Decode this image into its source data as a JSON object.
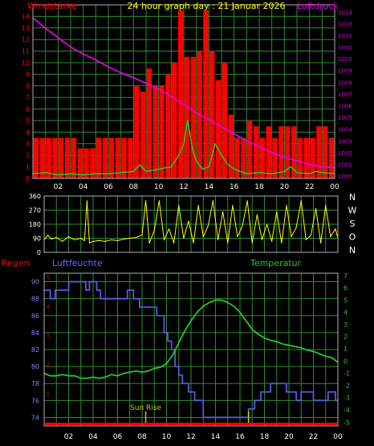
{
  "header": {
    "title": "24 hour graph day : 21 Januar 2026",
    "left_label": "Windstärke",
    "right_label": "Luftdruck"
  },
  "colors": {
    "grid": "#2e8b2e",
    "frame": "#b0b0b0",
    "wind": "#ff0000",
    "gust": "#22cc22",
    "pressure": "#e000e0",
    "direction": "#ffff00",
    "humidity": "#5a5adf",
    "temperature": "#22cc22",
    "rain": "#ff0000",
    "sunrise": "#cccc00"
  },
  "direction_letters": [
    "N",
    "W",
    "S",
    "O",
    "N"
  ],
  "bottom_header": {
    "rain_label": "Regen",
    "humidity_label": "Luftfeuchte",
    "temperature_label": "Temperatur"
  },
  "sun_rise_label": "Sun Rise",
  "x_ticks": [
    "02",
    "04",
    "06",
    "08",
    "10",
    "12",
    "14",
    "16",
    "18",
    "20",
    "22",
    "00"
  ],
  "chart_data": [
    {
      "type": "bar",
      "panel": "wind",
      "title": "24 hour graph day : 21 Januar 2026",
      "ylabel": "Windstärke",
      "y2label": "Luftdruck",
      "x_unit": "hour",
      "ylim": [
        0,
        15
      ],
      "yticks": [
        0,
        1,
        2,
        3,
        4,
        5,
        6,
        7,
        8,
        9,
        10,
        11,
        12,
        13,
        14
      ],
      "y2lim": [
        999.8,
        1014.6
      ],
      "y2ticks": [
        1000,
        1001,
        1002,
        1003,
        1004,
        1005,
        1006,
        1007,
        1008,
        1009,
        1010,
        1011,
        1012,
        1013,
        1014
      ],
      "series": [
        {
          "name": "Windstärke",
          "kind": "bar",
          "x": [
            0.25,
            0.75,
            1.25,
            1.75,
            2.25,
            2.75,
            3.25,
            3.75,
            4.25,
            4.75,
            5.25,
            5.75,
            6.25,
            6.75,
            7.25,
            7.75,
            8.25,
            8.75,
            9.25,
            9.75,
            10.25,
            10.75,
            11.25,
            11.75,
            12.25,
            12.75,
            13.25,
            13.75,
            14.25,
            14.75,
            15.25,
            15.75,
            16.25,
            16.75,
            17.25,
            17.75,
            18.25,
            18.75,
            19.25,
            19.75,
            20.25,
            20.75,
            21.25,
            21.75,
            22.25,
            22.75,
            23.25,
            23.75
          ],
          "values": [
            3.5,
            3.5,
            3.5,
            3.5,
            3.5,
            3.5,
            3.5,
            2.6,
            2.6,
            2.6,
            3.5,
            3.5,
            3.5,
            3.5,
            3.5,
            3.5,
            8.0,
            7.5,
            9.5,
            8.0,
            8.0,
            9.0,
            10.0,
            14.5,
            10.5,
            10.5,
            11.0,
            14.5,
            11.0,
            8.5,
            10.0,
            5.5,
            3.5,
            3.5,
            5.0,
            4.5,
            3.5,
            4.5,
            3.5,
            4.5,
            4.5,
            4.5,
            3.5,
            3.5,
            3.5,
            4.5,
            4.5,
            3.5
          ]
        },
        {
          "name": "Windstärke (Mittel)",
          "kind": "line",
          "x": [
            0,
            1,
            2,
            3,
            4,
            5,
            6,
            7,
            8,
            8.5,
            9,
            10,
            11,
            11.5,
            12,
            12.3,
            12.7,
            13,
            13.5,
            14,
            14.5,
            15,
            15.5,
            16,
            16.5,
            17,
            18,
            19,
            20,
            20.5,
            21,
            22,
            22.5,
            23,
            24
          ],
          "values": [
            0.4,
            0.5,
            0.3,
            0.4,
            0.3,
            0.4,
            0.4,
            0.5,
            0.6,
            1.2,
            0.6,
            0.8,
            1.0,
            1.8,
            3.0,
            5.0,
            2.5,
            1.5,
            0.8,
            1.0,
            3.0,
            2.0,
            1.2,
            0.8,
            0.6,
            0.4,
            0.5,
            0.4,
            0.6,
            1.0,
            0.5,
            0.4,
            0.6,
            0.5,
            0.4
          ]
        },
        {
          "name": "Luftdruck",
          "kind": "line",
          "axis": "right",
          "x": [
            0,
            1,
            2,
            3,
            4,
            5,
            6,
            7,
            8,
            9,
            10,
            11,
            12,
            13,
            14,
            15,
            16,
            17,
            18,
            19,
            20,
            21,
            22,
            23,
            24
          ],
          "values": [
            1013.5,
            1012.6,
            1011.8,
            1011.0,
            1010.4,
            1009.9,
            1009.3,
            1008.8,
            1008.4,
            1007.9,
            1007.4,
            1006.8,
            1006.1,
            1005.4,
            1004.8,
            1004.2,
            1003.6,
            1003.0,
            1002.5,
            1002.0,
            1001.6,
            1001.3,
            1001.0,
            1000.8,
            1000.7
          ]
        }
      ]
    },
    {
      "type": "line",
      "panel": "direction",
      "x_unit": "hour",
      "ylim": [
        0,
        360
      ],
      "yticks": [
        0,
        90,
        180,
        270,
        360
      ],
      "series": [
        {
          "name": "Windrichtung",
          "x": [
            0,
            0.3,
            0.6,
            1.0,
            1.5,
            2.0,
            2.5,
            3.0,
            3.3,
            3.5,
            3.7,
            4.0,
            4.5,
            5.0,
            5.5,
            6.0,
            6.5,
            7.0,
            7.5,
            8.0,
            8.3,
            8.6,
            9.0,
            9.4,
            9.8,
            10.2,
            10.6,
            11.0,
            11.4,
            11.8,
            12.2,
            12.6,
            13.0,
            13.4,
            13.8,
            14.2,
            14.6,
            15.0,
            15.4,
            15.8,
            16.2,
            16.6,
            17.0,
            17.4,
            17.8,
            18.2,
            18.6,
            19.0,
            19.4,
            19.8,
            20.2,
            20.6,
            21.0,
            21.4,
            21.8,
            22.2,
            22.6,
            23.0,
            23.4,
            23.8,
            24.0
          ],
          "values": [
            80,
            110,
            85,
            95,
            70,
            100,
            80,
            90,
            75,
            330,
            60,
            70,
            75,
            70,
            80,
            75,
            85,
            90,
            95,
            110,
            330,
            60,
            140,
            330,
            80,
            150,
            60,
            300,
            90,
            200,
            60,
            300,
            100,
            170,
            330,
            80,
            260,
            60,
            300,
            100,
            170,
            330,
            60,
            240,
            80,
            180,
            70,
            260,
            60,
            300,
            100,
            160,
            330,
            80,
            110,
            280,
            60,
            300,
            100,
            150,
            90
          ]
        }
      ]
    },
    {
      "type": "line",
      "panel": "humidity-temperature",
      "x_unit": "hour",
      "ylim": [
        73,
        91
      ],
      "yticks": [
        74,
        76,
        78,
        80,
        82,
        84,
        86,
        88,
        90
      ],
      "ylabel": "Luftfeuchte",
      "y2lim": [
        -5.3,
        7.2
      ],
      "y2ticks": [
        -5,
        -4,
        -3,
        -2,
        -1,
        0,
        1,
        2,
        3,
        4,
        5,
        6,
        7
      ],
      "y2label": "Temperatur",
      "rain_ticks": [
        0,
        1,
        2,
        3,
        4,
        5
      ],
      "rain_label": "Regen",
      "sunrise_hour": 8.3,
      "sunset_hour": 16.7,
      "series": [
        {
          "name": "Luftfeuchte",
          "x": [
            0,
            0.5,
            0.5,
            0.9,
            0.9,
            2.0,
            2.0,
            3.4,
            3.4,
            3.7,
            3.7,
            4.3,
            4.3,
            4.6,
            4.6,
            6.8,
            6.8,
            7.3,
            7.3,
            7.8,
            7.8,
            9.2,
            9.2,
            9.8,
            9.8,
            10.1,
            10.1,
            10.4,
            10.4,
            10.7,
            10.7,
            11.0,
            11.0,
            11.3,
            11.3,
            11.8,
            11.8,
            12.3,
            12.3,
            13.0,
            13.0,
            16.7,
            16.7,
            17.2,
            17.2,
            17.7,
            17.7,
            18.5,
            18.5,
            19.8,
            19.8,
            20.6,
            20.6,
            21.0,
            21.0,
            22.0,
            22.0,
            23.2,
            23.2,
            23.8,
            23.8,
            24.0
          ],
          "values": [
            89,
            89,
            88,
            88,
            89,
            89,
            90,
            90,
            89,
            89,
            90,
            90,
            89,
            89,
            88,
            88,
            89,
            89,
            88,
            88,
            87,
            87,
            86,
            86,
            84,
            84,
            83,
            83,
            82,
            82,
            80,
            80,
            79,
            79,
            78,
            78,
            77,
            77,
            76,
            76,
            74,
            74,
            75,
            75,
            76,
            76,
            77,
            77,
            78,
            78,
            77,
            77,
            76,
            76,
            77,
            77,
            76,
            76,
            77,
            77,
            76,
            76
          ]
        },
        {
          "name": "Temperatur",
          "axis": "right",
          "x": [
            0,
            0.5,
            1.0,
            1.5,
            2.0,
            2.5,
            3.0,
            3.5,
            4.0,
            4.5,
            5.0,
            5.5,
            6.0,
            6.5,
            7.0,
            7.5,
            8.0,
            8.5,
            9.0,
            9.5,
            10.0,
            10.5,
            11.0,
            11.5,
            12.0,
            12.5,
            13.0,
            13.5,
            14.0,
            14.5,
            15.0,
            15.5,
            16.0,
            16.5,
            17.0,
            17.5,
            18.0,
            18.5,
            19.0,
            19.5,
            20.0,
            20.5,
            21.0,
            21.5,
            22.0,
            22.5,
            23.0,
            23.5,
            24.0
          ],
          "values": [
            -1.0,
            -1.2,
            -1.2,
            -1.1,
            -1.2,
            -1.2,
            -1.4,
            -1.4,
            -1.3,
            -1.4,
            -1.3,
            -1.1,
            -1.2,
            -1.0,
            -0.9,
            -0.8,
            -0.9,
            -0.8,
            -0.6,
            -0.5,
            -0.2,
            0.5,
            1.5,
            2.5,
            3.3,
            4.0,
            4.5,
            4.8,
            5.0,
            5.0,
            4.8,
            4.5,
            4.0,
            3.3,
            2.6,
            2.2,
            1.9,
            1.7,
            1.6,
            1.4,
            1.3,
            1.2,
            1.1,
            0.9,
            0.8,
            0.6,
            0.4,
            0.3,
            -0.1
          ]
        },
        {
          "name": "Regen",
          "axis": "rain",
          "x": [
            0,
            24
          ],
          "values": [
            0,
            0
          ]
        }
      ]
    }
  ]
}
